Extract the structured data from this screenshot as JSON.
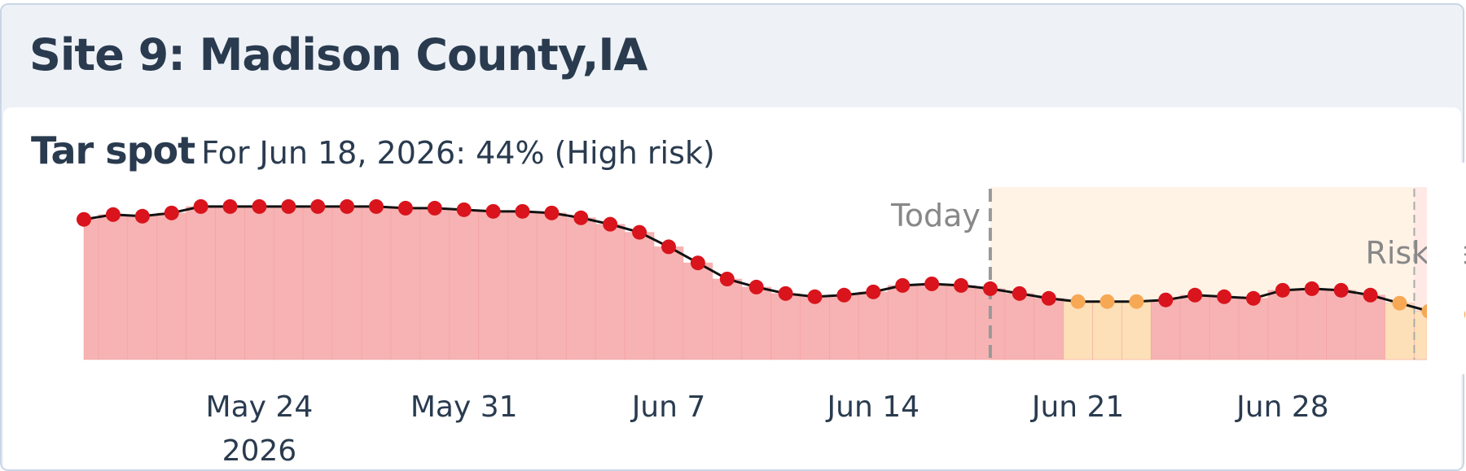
{
  "site": {
    "title": "Site 9: Madison County,IA"
  },
  "panel": {
    "disease": "Tar spot",
    "summary": "For Jun 18, 2026: 44% (High risk)"
  },
  "colors": {
    "high_point": "#d9141c",
    "moderate_point": "#f7a855",
    "high_bar": "#f7b3b3",
    "moderate_bar": "#fde0b8",
    "line": "#111111",
    "forecast_shade": "#fff3e6",
    "text": "#2a3b4f",
    "annotation": "#888888"
  },
  "chart_data": {
    "type": "line",
    "x_ticks": [
      "May 24",
      "May 31",
      "Jun 7",
      "Jun 14",
      "Jun 21",
      "Jun 28"
    ],
    "x_year_label": "2026",
    "annotations": {
      "today_label": "Today",
      "risk_period_label": "Risk Per"
    },
    "series": [
      {
        "dates": [
          "May 18",
          "May 19",
          "May 20",
          "May 21",
          "May 22",
          "May 23",
          "May 24",
          "May 25",
          "May 26",
          "May 27",
          "May 28",
          "May 29",
          "May 30",
          "May 31",
          "Jun 1",
          "Jun 2",
          "Jun 3",
          "Jun 4",
          "Jun 5",
          "Jun 6",
          "Jun 7",
          "Jun 8",
          "Jun 9",
          "Jun 10",
          "Jun 11",
          "Jun 12",
          "Jun 13",
          "Jun 14",
          "Jun 15",
          "Jun 16",
          "Jun 17",
          "Jun 18",
          "Jun 19",
          "Jun 20",
          "Jun 21",
          "Jun 22",
          "Jun 23",
          "Jun 24",
          "Jun 25",
          "Jun 26",
          "Jun 27",
          "Jun 28",
          "Jun 29",
          "Jun 30",
          "Jul 1",
          "Jul 2",
          "Jul 3",
          "Jul 4"
        ],
        "values": [
          87,
          90,
          89,
          91,
          95,
          95,
          95,
          95,
          95,
          95,
          95,
          94,
          94,
          93,
          92,
          92,
          91,
          88,
          84,
          79,
          70,
          60,
          50,
          45,
          41,
          39,
          40,
          42,
          46,
          47,
          46,
          44,
          41,
          38,
          36,
          36,
          36,
          37,
          40,
          39,
          38,
          43,
          44,
          43,
          40,
          35,
          30,
          28
        ],
        "risk_levels": [
          "high",
          "high",
          "high",
          "high",
          "high",
          "high",
          "high",
          "high",
          "high",
          "high",
          "high",
          "high",
          "high",
          "high",
          "high",
          "high",
          "high",
          "high",
          "high",
          "high",
          "high",
          "high",
          "high",
          "high",
          "high",
          "high",
          "high",
          "high",
          "high",
          "high",
          "high",
          "high",
          "high",
          "high",
          "moderate",
          "moderate",
          "moderate",
          "high",
          "high",
          "high",
          "high",
          "high",
          "high",
          "high",
          "high",
          "moderate",
          "moderate",
          "moderate"
        ]
      }
    ],
    "today": "Jun 18",
    "forecast_end": "Jul 3",
    "risk_period_start": "Jul 3",
    "ylim": [
      0,
      100
    ]
  }
}
